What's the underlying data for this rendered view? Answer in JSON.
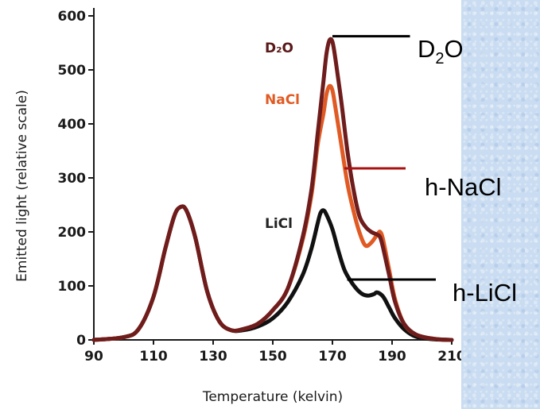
{
  "chart_data": {
    "type": "line",
    "title": "",
    "xlabel": "Temperature (kelvin)",
    "ylabel": "Emitted light (relative scale)",
    "xlim": [
      90,
      210
    ],
    "ylim": [
      0,
      600
    ],
    "xticks": [
      90,
      110,
      130,
      150,
      170,
      190,
      210
    ],
    "yticks": [
      0,
      100,
      200,
      300,
      400,
      500,
      600
    ],
    "grid": false,
    "series": [
      {
        "name": "D2O",
        "color": "#6e1c1c",
        "points": [
          [
            90,
            0
          ],
          [
            100,
            5
          ],
          [
            105,
            20
          ],
          [
            110,
            80
          ],
          [
            114,
            170
          ],
          [
            117,
            230
          ],
          [
            119,
            246
          ],
          [
            121,
            240
          ],
          [
            124,
            190
          ],
          [
            128,
            90
          ],
          [
            132,
            35
          ],
          [
            136,
            18
          ],
          [
            140,
            20
          ],
          [
            145,
            30
          ],
          [
            150,
            55
          ],
          [
            155,
            95
          ],
          [
            160,
            190
          ],
          [
            163,
            280
          ],
          [
            165,
            380
          ],
          [
            167,
            480
          ],
          [
            168,
            530
          ],
          [
            169,
            555
          ],
          [
            170,
            552
          ],
          [
            171,
            520
          ],
          [
            173,
            440
          ],
          [
            175,
            350
          ],
          [
            177,
            280
          ],
          [
            179,
            230
          ],
          [
            181,
            210
          ],
          [
            183,
            200
          ],
          [
            185,
            195
          ],
          [
            186,
            190
          ],
          [
            187,
            170
          ],
          [
            189,
            120
          ],
          [
            191,
            70
          ],
          [
            194,
            30
          ],
          [
            198,
            10
          ],
          [
            204,
            2
          ],
          [
            210,
            0
          ]
        ]
      },
      {
        "name": "NaCl",
        "color": "#e05a24",
        "points": [
          [
            90,
            0
          ],
          [
            100,
            5
          ],
          [
            105,
            20
          ],
          [
            110,
            80
          ],
          [
            114,
            170
          ],
          [
            117,
            230
          ],
          [
            119,
            246
          ],
          [
            121,
            240
          ],
          [
            124,
            190
          ],
          [
            128,
            90
          ],
          [
            132,
            35
          ],
          [
            136,
            18
          ],
          [
            140,
            20
          ],
          [
            145,
            30
          ],
          [
            150,
            55
          ],
          [
            155,
            95
          ],
          [
            160,
            185
          ],
          [
            163,
            270
          ],
          [
            165,
            360
          ],
          [
            167,
            420
          ],
          [
            168,
            455
          ],
          [
            169,
            470
          ],
          [
            170,
            462
          ],
          [
            171,
            430
          ],
          [
            173,
            360
          ],
          [
            175,
            290
          ],
          [
            177,
            240
          ],
          [
            179,
            200
          ],
          [
            181,
            175
          ],
          [
            183,
            180
          ],
          [
            185,
            195
          ],
          [
            186,
            200
          ],
          [
            187,
            185
          ],
          [
            189,
            130
          ],
          [
            191,
            75
          ],
          [
            194,
            30
          ],
          [
            198,
            10
          ],
          [
            204,
            2
          ],
          [
            210,
            0
          ]
        ]
      },
      {
        "name": "LiCl",
        "color": "#111111",
        "points": [
          [
            90,
            0
          ],
          [
            100,
            5
          ],
          [
            105,
            20
          ],
          [
            110,
            80
          ],
          [
            114,
            170
          ],
          [
            117,
            230
          ],
          [
            119,
            246
          ],
          [
            121,
            240
          ],
          [
            124,
            190
          ],
          [
            128,
            90
          ],
          [
            132,
            35
          ],
          [
            136,
            18
          ],
          [
            140,
            18
          ],
          [
            145,
            25
          ],
          [
            150,
            40
          ],
          [
            155,
            70
          ],
          [
            160,
            120
          ],
          [
            163,
            170
          ],
          [
            165,
            215
          ],
          [
            166,
            235
          ],
          [
            167,
            240
          ],
          [
            168,
            232
          ],
          [
            170,
            205
          ],
          [
            172,
            165
          ],
          [
            174,
            130
          ],
          [
            176,
            110
          ],
          [
            178,
            95
          ],
          [
            180,
            85
          ],
          [
            182,
            82
          ],
          [
            184,
            85
          ],
          [
            185,
            88
          ],
          [
            187,
            80
          ],
          [
            189,
            60
          ],
          [
            191,
            40
          ],
          [
            194,
            20
          ],
          [
            198,
            6
          ],
          [
            204,
            1
          ],
          [
            210,
            0
          ]
        ]
      }
    ],
    "legend": [
      {
        "label": "D₂O",
        "color": "#5a1818"
      },
      {
        "label": "NaCl",
        "color": "#e05a24"
      },
      {
        "label": "LiCl",
        "color": "#222222"
      }
    ],
    "annotations": [
      {
        "label_main": "D",
        "label_sub": "2",
        "label_tail": "O",
        "line_color": "#000000",
        "from": [
          170,
          555
        ],
        "to_x": 196
      },
      {
        "label": "h-NaCl",
        "line_color": "#aa1111",
        "from": [
          174,
          310
        ],
        "to_x": 187
      },
      {
        "label": "h-LiCl",
        "line_color": "#000000",
        "from": [
          176,
          110
        ],
        "to_x": 196
      }
    ]
  }
}
